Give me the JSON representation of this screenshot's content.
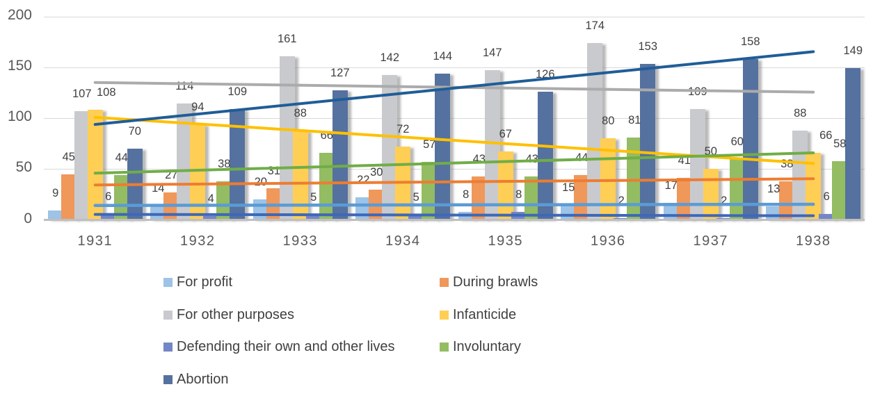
{
  "chart_data": {
    "type": "bar",
    "title": "",
    "categories": [
      "1931",
      "1932",
      "1933",
      "1934",
      "1935",
      "1936",
      "1937",
      "1938"
    ],
    "series": [
      {
        "name": "For profit",
        "bar_color": "#9DC3E6",
        "line_color": "#5B9BD5",
        "values": [
          9,
          14,
          20,
          22,
          8,
          15,
          17,
          13
        ]
      },
      {
        "name": "During brawls",
        "bar_color": "#F0975A",
        "line_color": "#ED7D31",
        "values": [
          45,
          27,
          31,
          30,
          43,
          44,
          41,
          38
        ]
      },
      {
        "name": "For other purposes",
        "bar_color": "#C9CACE",
        "line_color": "#ABABAB",
        "values": [
          107,
          114,
          161,
          142,
          147,
          174,
          109,
          88
        ]
      },
      {
        "name": "Infanticide",
        "bar_color": "#FFCE55",
        "line_color": "#FFC000",
        "values": [
          108,
          94,
          88,
          72,
          67,
          80,
          50,
          66
        ]
      },
      {
        "name": "Defending their own and other lives",
        "bar_color": "#7486C6",
        "line_color": "#3E68B8",
        "values": [
          6,
          4,
          5,
          5,
          8,
          2,
          2,
          6
        ]
      },
      {
        "name": "Involuntary",
        "bar_color": "#94BC62",
        "line_color": "#70AD47",
        "values": [
          44,
          38,
          66,
          57,
          43,
          81,
          60,
          58
        ]
      },
      {
        "name": "Abortion",
        "bar_color": "#55719F",
        "line_color": "#205D97",
        "values": [
          70,
          109,
          127,
          144,
          126,
          153,
          158,
          149
        ]
      }
    ],
    "ylim": [
      0,
      200
    ],
    "yticks": [
      0,
      50,
      100,
      150,
      200
    ],
    "grid": true,
    "data_labels": true,
    "trendlines": "linear, per series, spanning first to last category",
    "legend_position": "bottom, two columns"
  }
}
